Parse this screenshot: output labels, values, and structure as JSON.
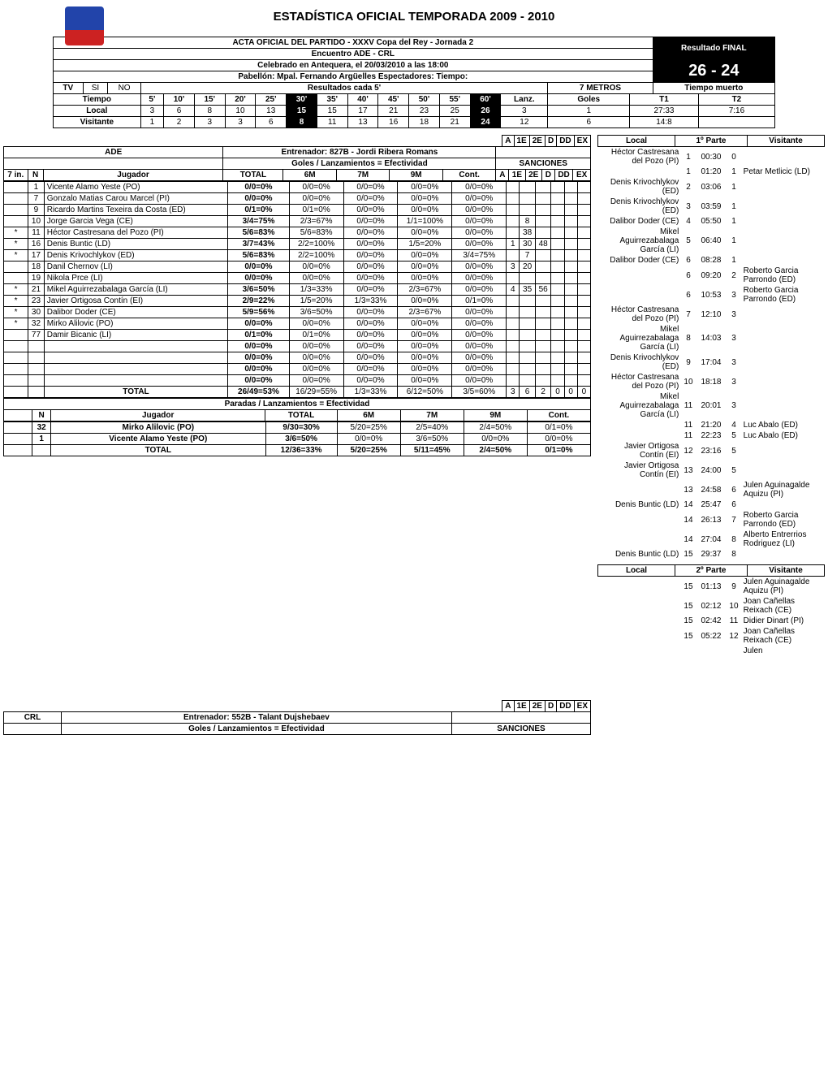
{
  "title": "ESTADÍSTICA OFICIAL TEMPORADA 2009 - 2010",
  "acta": "ACTA OFICIAL DEL PARTIDO - XXXV Copa del Rey - Jornada 2",
  "encuentro": "Encuentro ADE - CRL",
  "celebrado": "Celebrado en Antequera, el 20/03/2010 a las 18:00",
  "pabellon": "Pabellón: Mpal. Fernando Argüelles Espectadores:    Tiempo:",
  "resultado_label": "Resultado FINAL",
  "score": "26 - 24",
  "tv": "TV",
  "si": "SI",
  "no": "NO",
  "res5": "Resultados cada 5'",
  "metros7": "7 METROS",
  "tiempo_muerto": "Tiempo muerto",
  "tiempo": "Tiempo",
  "times": [
    "5'",
    "10'",
    "15'",
    "20'",
    "25'",
    "30'",
    "35'",
    "40'",
    "45'",
    "50'",
    "55'",
    "60'"
  ],
  "lanz": "Lanz.",
  "goles": "Goles",
  "t1": "T1",
  "t2": "T2",
  "local_label": "Local",
  "visitante_label": "Visitante",
  "local_scores": [
    "3",
    "6",
    "8",
    "10",
    "13",
    "15",
    "15",
    "17",
    "21",
    "23",
    "25",
    "26"
  ],
  "vis_scores": [
    "1",
    "2",
    "3",
    "3",
    "6",
    "8",
    "11",
    "13",
    "16",
    "18",
    "21",
    "24"
  ],
  "local_7m": [
    "3",
    "1"
  ],
  "vis_7m": [
    "12",
    "6"
  ],
  "local_tm": [
    "27:33",
    "7:16"
  ],
  "vis_tm": [
    "14:8",
    ""
  ],
  "team_ade": "ADE",
  "team_crl": "CRL",
  "entrenador_ade": "Entrenador: 827B - Jordi Ribera Romans",
  "entrenador_crl": "Entrenador: 552B - Talant Dujshebaev",
  "goles_lanz": "Goles / Lanzamientos = Efectividad",
  "paradas_lanz": "Paradas / Lanzamientos = Efectividad",
  "sanciones": "SANCIONES",
  "col7in": "7 in.",
  "colN": "N",
  "colJugador": "Jugador",
  "colTotal": "TOTAL",
  "col6m": "6M",
  "col7m": "7M",
  "col9m": "9M",
  "colCont": "Cont.",
  "sanc_h": [
    "A",
    "1E",
    "2E",
    "D",
    "DD",
    "EX"
  ],
  "ade_players": [
    {
      "s": "",
      "n": "1",
      "name": "Vicente Alamo Yeste (PO)",
      "t": "0/0=0%",
      "m6": "0/0=0%",
      "m7": "0/0=0%",
      "m9": "0/0=0%",
      "c": "0/0=0%",
      "sanc": [
        "",
        "",
        "",
        "",
        "",
        ""
      ]
    },
    {
      "s": "",
      "n": "7",
      "name": "Gonzalo Matias Carou Marcel (PI)",
      "t": "0/0=0%",
      "m6": "0/0=0%",
      "m7": "0/0=0%",
      "m9": "0/0=0%",
      "c": "0/0=0%",
      "sanc": [
        "",
        "",
        "",
        "",
        "",
        ""
      ]
    },
    {
      "s": "",
      "n": "9",
      "name": "Ricardo Martins Texeira da Costa (ED)",
      "t": "0/1=0%",
      "m6": "0/1=0%",
      "m7": "0/0=0%",
      "m9": "0/0=0%",
      "c": "0/0=0%",
      "sanc": [
        "",
        "",
        "",
        "",
        "",
        ""
      ]
    },
    {
      "s": "",
      "n": "10",
      "name": "Jorge Garcia Vega (CE)",
      "t": "3/4=75%",
      "m6": "2/3=67%",
      "m7": "0/0=0%",
      "m9": "1/1=100%",
      "c": "0/0=0%",
      "sanc": [
        "",
        "8",
        "",
        "",
        "",
        ""
      ]
    },
    {
      "s": "*",
      "n": "11",
      "name": "Héctor Castresana del Pozo (PI)",
      "t": "5/6=83%",
      "m6": "5/6=83%",
      "m7": "0/0=0%",
      "m9": "0/0=0%",
      "c": "0/0=0%",
      "sanc": [
        "",
        "38",
        "",
        "",
        "",
        ""
      ]
    },
    {
      "s": "*",
      "n": "16",
      "name": "Denis Buntic (LD)",
      "t": "3/7=43%",
      "m6": "2/2=100%",
      "m7": "0/0=0%",
      "m9": "1/5=20%",
      "c": "0/0=0%",
      "sanc": [
        "1",
        "30",
        "48",
        "",
        "",
        ""
      ]
    },
    {
      "s": "*",
      "n": "17",
      "name": "Denis Krivochlykov (ED)",
      "t": "5/6=83%",
      "m6": "2/2=100%",
      "m7": "0/0=0%",
      "m9": "0/0=0%",
      "c": "3/4=75%",
      "sanc": [
        "",
        "7",
        "",
        "",
        "",
        ""
      ]
    },
    {
      "s": "",
      "n": "18",
      "name": "Danil Chernov (LI)",
      "t": "0/0=0%",
      "m6": "0/0=0%",
      "m7": "0/0=0%",
      "m9": "0/0=0%",
      "c": "0/0=0%",
      "sanc": [
        "3",
        "20",
        "",
        "",
        "",
        ""
      ]
    },
    {
      "s": "",
      "n": "19",
      "name": "Nikola Prce (LI)",
      "t": "0/0=0%",
      "m6": "0/0=0%",
      "m7": "0/0=0%",
      "m9": "0/0=0%",
      "c": "0/0=0%",
      "sanc": [
        "",
        "",
        "",
        "",
        "",
        ""
      ]
    },
    {
      "s": "*",
      "n": "21",
      "name": "Mikel Aguirrezabalaga García (LI)",
      "t": "3/6=50%",
      "m6": "1/3=33%",
      "m7": "0/0=0%",
      "m9": "2/3=67%",
      "c": "0/0=0%",
      "sanc": [
        "4",
        "35",
        "56",
        "",
        "",
        ""
      ]
    },
    {
      "s": "*",
      "n": "23",
      "name": "Javier Ortigosa Contín (EI)",
      "t": "2/9=22%",
      "m6": "1/5=20%",
      "m7": "1/3=33%",
      "m9": "0/0=0%",
      "c": "0/1=0%",
      "sanc": [
        "",
        "",
        "",
        "",
        "",
        ""
      ]
    },
    {
      "s": "*",
      "n": "30",
      "name": "Dalibor Doder (CE)",
      "t": "5/9=56%",
      "m6": "3/6=50%",
      "m7": "0/0=0%",
      "m9": "2/3=67%",
      "c": "0/0=0%",
      "sanc": [
        "",
        "",
        "",
        "",
        "",
        ""
      ]
    },
    {
      "s": "*",
      "n": "32",
      "name": "Mirko Alilovic (PO)",
      "t": "0/0=0%",
      "m6": "0/0=0%",
      "m7": "0/0=0%",
      "m9": "0/0=0%",
      "c": "0/0=0%",
      "sanc": [
        "",
        "",
        "",
        "",
        "",
        ""
      ]
    },
    {
      "s": "",
      "n": "77",
      "name": "Damir Bicanic (LI)",
      "t": "0/1=0%",
      "m6": "0/1=0%",
      "m7": "0/0=0%",
      "m9": "0/0=0%",
      "c": "0/0=0%",
      "sanc": [
        "",
        "",
        "",
        "",
        "",
        ""
      ]
    },
    {
      "s": "",
      "n": "",
      "name": "",
      "t": "0/0=0%",
      "m6": "0/0=0%",
      "m7": "0/0=0%",
      "m9": "0/0=0%",
      "c": "0/0=0%",
      "sanc": [
        "",
        "",
        "",
        "",
        "",
        ""
      ]
    },
    {
      "s": "",
      "n": "",
      "name": "",
      "t": "0/0=0%",
      "m6": "0/0=0%",
      "m7": "0/0=0%",
      "m9": "0/0=0%",
      "c": "0/0=0%",
      "sanc": [
        "",
        "",
        "",
        "",
        "",
        ""
      ]
    },
    {
      "s": "",
      "n": "",
      "name": "",
      "t": "0/0=0%",
      "m6": "0/0=0%",
      "m7": "0/0=0%",
      "m9": "0/0=0%",
      "c": "0/0=0%",
      "sanc": [
        "",
        "",
        "",
        "",
        "",
        ""
      ]
    },
    {
      "s": "",
      "n": "",
      "name": "",
      "t": "0/0=0%",
      "m6": "0/0=0%",
      "m7": "0/0=0%",
      "m9": "0/0=0%",
      "c": "0/0=0%",
      "sanc": [
        "",
        "",
        "",
        "",
        "",
        ""
      ]
    }
  ],
  "ade_total": {
    "t": "26/49=53%",
    "m6": "16/29=55%",
    "m7": "1/3=33%",
    "m9": "6/12=50%",
    "c": "3/5=60%",
    "sanc": [
      "3",
      "6",
      "2",
      "0",
      "0",
      "0"
    ]
  },
  "ade_goalies": [
    {
      "n": "32",
      "name": "Mirko Alilovic (PO)",
      "t": "9/30=30%",
      "m6": "5/20=25%",
      "m7": "2/5=40%",
      "m9": "2/4=50%",
      "c": "0/1=0%"
    },
    {
      "n": "1",
      "name": "Vicente Alamo Yeste (PO)",
      "t": "3/6=50%",
      "m6": "0/0=0%",
      "m7": "3/6=50%",
      "m9": "0/0=0%",
      "c": "0/0=0%"
    }
  ],
  "ade_gk_total": {
    "t": "12/36=33%",
    "m6": "5/20=25%",
    "m7": "5/11=45%",
    "m9": "2/4=50%",
    "c": "0/1=0%"
  },
  "parte1": "1º Parte",
  "parte2": "2º Parte",
  "goal_log1": [
    {
      "l": "Héctor Castresana del Pozo (PI)",
      "ls": "1",
      "t": "00:30",
      "rs": "0",
      "r": ""
    },
    {
      "l": "",
      "ls": "1",
      "t": "01:20",
      "rs": "1",
      "r": "Petar Metlicic (LD)"
    },
    {
      "l": "Denis Krivochlykov (ED)",
      "ls": "2",
      "t": "03:06",
      "rs": "1",
      "r": ""
    },
    {
      "l": "Denis Krivochlykov (ED)",
      "ls": "3",
      "t": "03:59",
      "rs": "1",
      "r": ""
    },
    {
      "l": "Dalibor Doder (CE)",
      "ls": "4",
      "t": "05:50",
      "rs": "1",
      "r": ""
    },
    {
      "l": "Mikel Aguirrezabalaga García (LI)",
      "ls": "5",
      "t": "06:40",
      "rs": "1",
      "r": ""
    },
    {
      "l": "Dalibor Doder (CE)",
      "ls": "6",
      "t": "08:28",
      "rs": "1",
      "r": ""
    },
    {
      "l": "",
      "ls": "6",
      "t": "09:20",
      "rs": "2",
      "r": "Roberto Garcia Parrondo (ED)"
    },
    {
      "l": "",
      "ls": "6",
      "t": "10:53",
      "rs": "3",
      "r": "Roberto Garcia Parrondo (ED)"
    },
    {
      "l": "Héctor Castresana del Pozo (PI)",
      "ls": "7",
      "t": "12:10",
      "rs": "3",
      "r": ""
    },
    {
      "l": "Mikel Aguirrezabalaga García (LI)",
      "ls": "8",
      "t": "14:03",
      "rs": "3",
      "r": ""
    },
    {
      "l": "Denis Krivochlykov (ED)",
      "ls": "9",
      "t": "17:04",
      "rs": "3",
      "r": ""
    },
    {
      "l": "Héctor Castresana del Pozo (PI)",
      "ls": "10",
      "t": "18:18",
      "rs": "3",
      "r": ""
    },
    {
      "l": "Mikel Aguirrezabalaga García (LI)",
      "ls": "11",
      "t": "20:01",
      "rs": "3",
      "r": ""
    },
    {
      "l": "",
      "ls": "11",
      "t": "21:20",
      "rs": "4",
      "r": "Luc Abalo (ED)"
    },
    {
      "l": "",
      "ls": "11",
      "t": "22:23",
      "rs": "5",
      "r": "Luc Abalo (ED)"
    },
    {
      "l": "Javier Ortigosa Contín (EI)",
      "ls": "12",
      "t": "23:16",
      "rs": "5",
      "r": ""
    },
    {
      "l": "Javier Ortigosa Contín (EI)",
      "ls": "13",
      "t": "24:00",
      "rs": "5",
      "r": ""
    },
    {
      "l": "",
      "ls": "13",
      "t": "24:58",
      "rs": "6",
      "r": "Julen Aguinagalde Aquizu (PI)"
    },
    {
      "l": "Denis Buntic (LD)",
      "ls": "14",
      "t": "25:47",
      "rs": "6",
      "r": ""
    },
    {
      "l": "",
      "ls": "14",
      "t": "26:13",
      "rs": "7",
      "r": "Roberto Garcia Parrondo (ED)"
    },
    {
      "l": "",
      "ls": "14",
      "t": "27:04",
      "rs": "8",
      "r": "Alberto Entrerrios Rodriguez (LI)"
    },
    {
      "l": "Denis Buntic (LD)",
      "ls": "15",
      "t": "29:37",
      "rs": "8",
      "r": ""
    }
  ],
  "goal_log2": [
    {
      "l": "",
      "ls": "15",
      "t": "01:13",
      "rs": "9",
      "r": "Julen Aguinagalde Aquizu (PI)"
    },
    {
      "l": "",
      "ls": "15",
      "t": "02:12",
      "rs": "10",
      "r": "Joan Cañellas Reixach (CE)"
    },
    {
      "l": "",
      "ls": "15",
      "t": "02:42",
      "rs": "11",
      "r": "Didier Dinart (PI)"
    },
    {
      "l": "",
      "ls": "15",
      "t": "05:22",
      "rs": "12",
      "r": "Joan Cañellas Reixach (CE)"
    },
    {
      "l": "",
      "ls": "",
      "t": "",
      "rs": "",
      "r": "Julen"
    }
  ]
}
